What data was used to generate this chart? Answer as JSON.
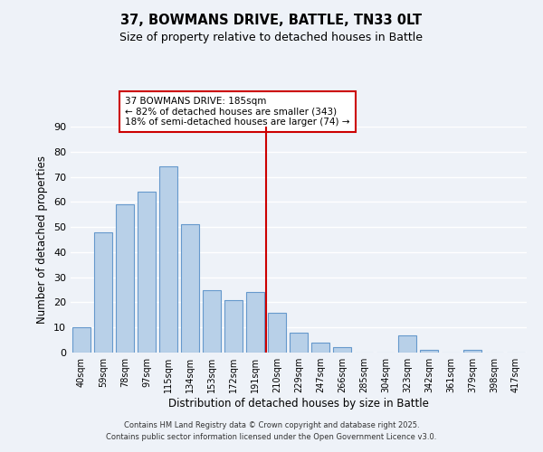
{
  "title": "37, BOWMANS DRIVE, BATTLE, TN33 0LT",
  "subtitle": "Size of property relative to detached houses in Battle",
  "xlabel": "Distribution of detached houses by size in Battle",
  "ylabel": "Number of detached properties",
  "categories": [
    "40sqm",
    "59sqm",
    "78sqm",
    "97sqm",
    "115sqm",
    "134sqm",
    "153sqm",
    "172sqm",
    "191sqm",
    "210sqm",
    "229sqm",
    "247sqm",
    "266sqm",
    "285sqm",
    "304sqm",
    "323sqm",
    "342sqm",
    "361sqm",
    "379sqm",
    "398sqm",
    "417sqm"
  ],
  "values": [
    10,
    48,
    59,
    64,
    74,
    51,
    25,
    21,
    24,
    16,
    8,
    4,
    2,
    0,
    0,
    7,
    1,
    0,
    1,
    0,
    0
  ],
  "bar_color": "#b8d0e8",
  "bar_edge_color": "#6699cc",
  "vline_x_index": 8,
  "vline_color": "#cc0000",
  "annotation_title": "37 BOWMANS DRIVE: 185sqm",
  "annotation_line1": "← 82% of detached houses are smaller (343)",
  "annotation_line2": "18% of semi-detached houses are larger (74) →",
  "annotation_box_color": "#ffffff",
  "annotation_box_edge": "#cc0000",
  "ylim": [
    0,
    90
  ],
  "yticks": [
    0,
    10,
    20,
    30,
    40,
    50,
    60,
    70,
    80,
    90
  ],
  "background_color": "#eef2f8",
  "grid_color": "#ffffff",
  "footer_line1": "Contains HM Land Registry data © Crown copyright and database right 2025.",
  "footer_line2": "Contains public sector information licensed under the Open Government Licence v3.0."
}
